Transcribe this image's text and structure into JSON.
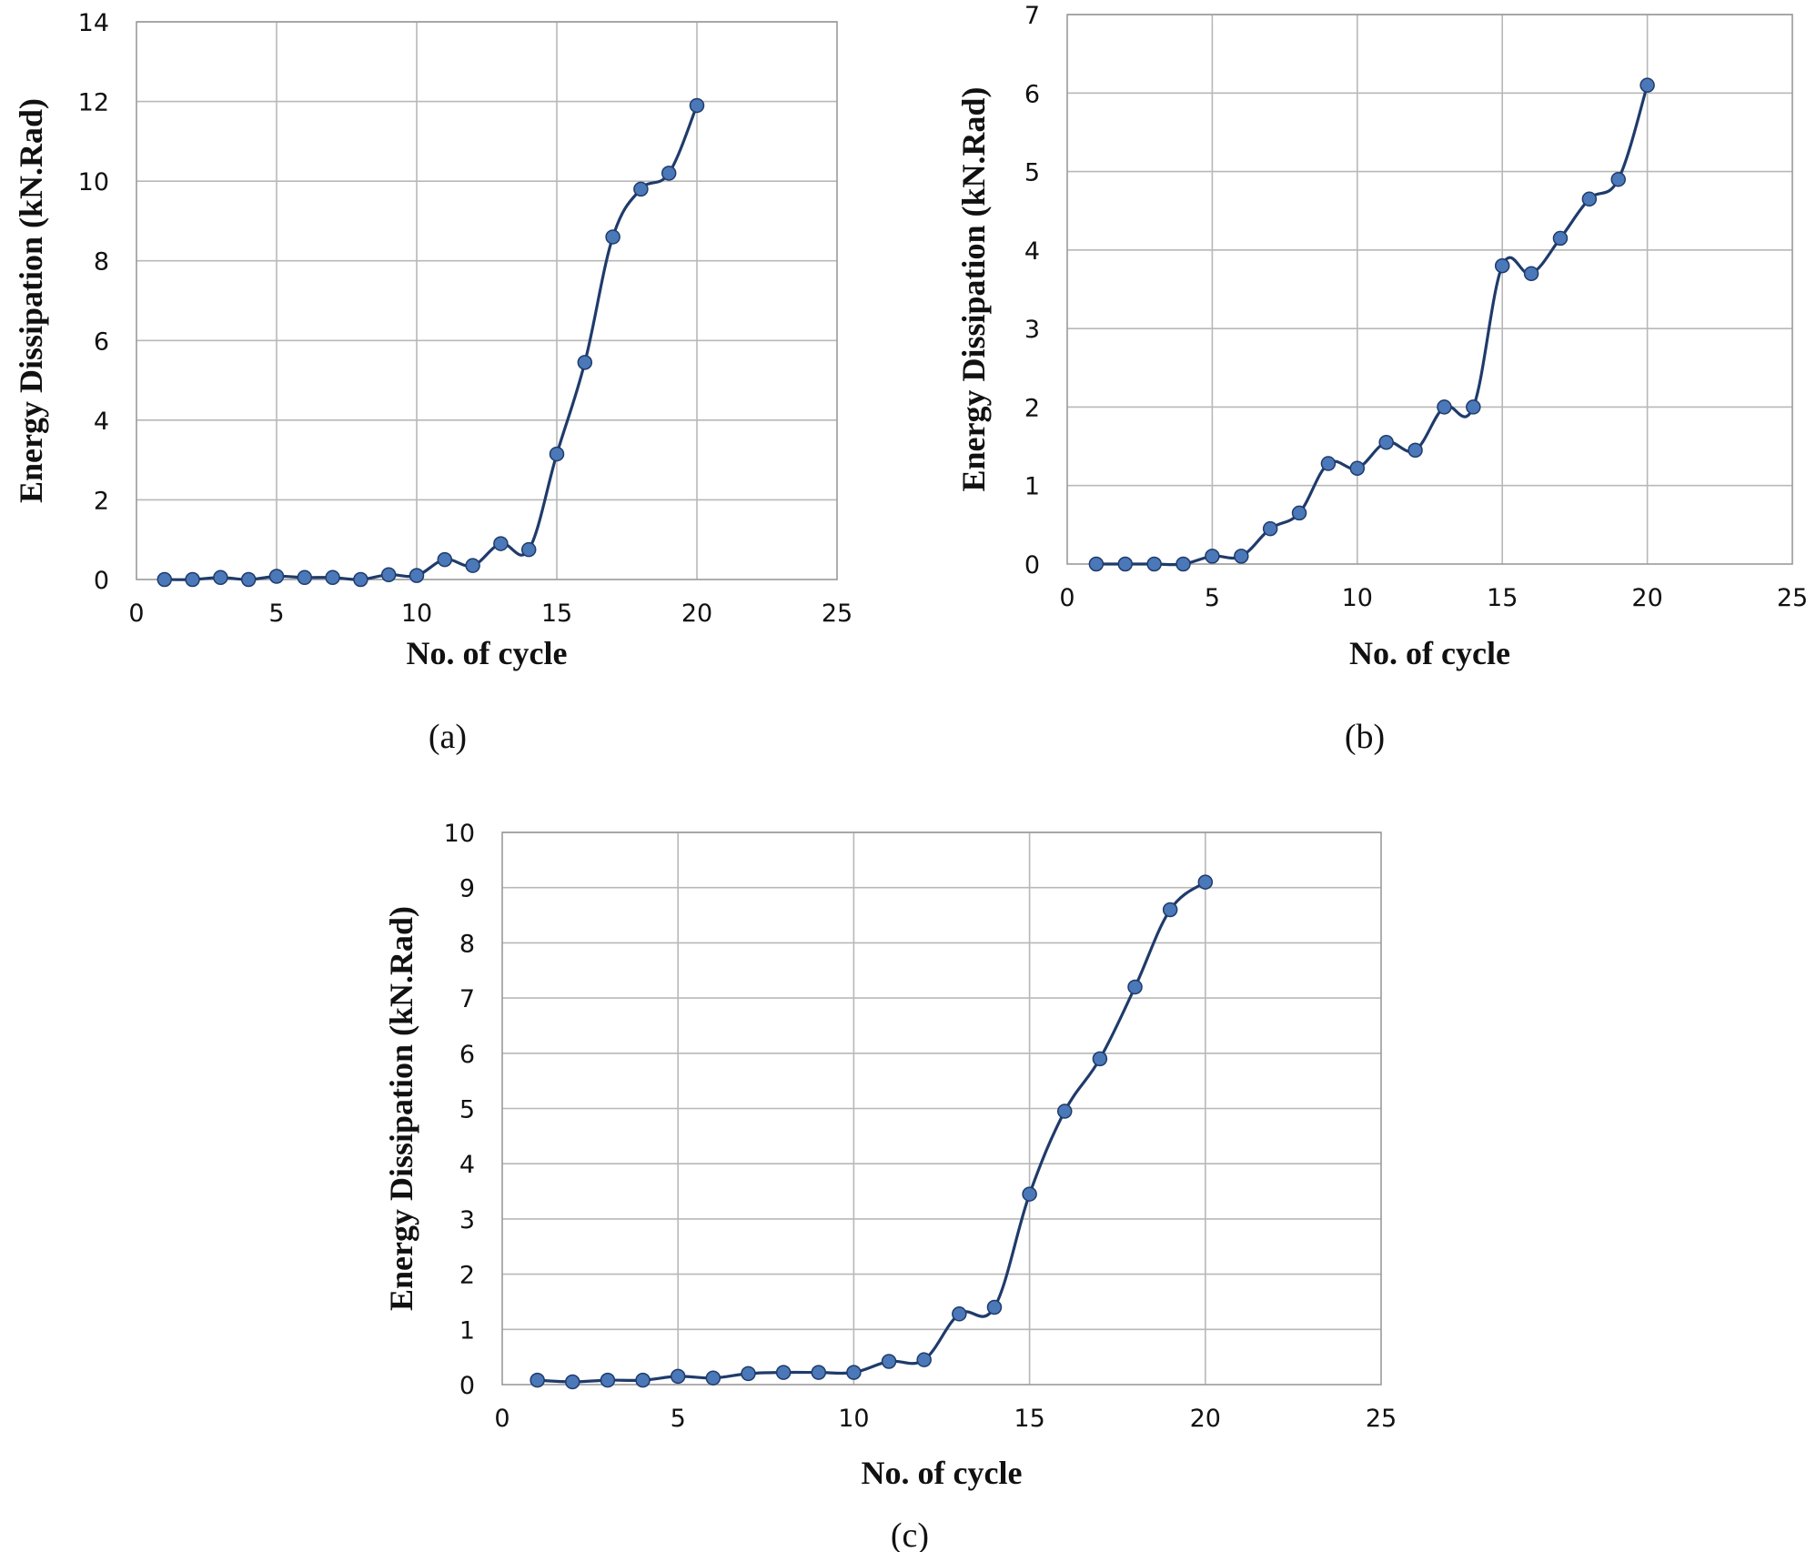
{
  "colors": {
    "series_line": "#1f3b6b",
    "marker_fill": "#4a78b8",
    "marker_stroke": "#1f3b6b"
  },
  "chart_data": [
    {
      "type": "line",
      "panel": "a",
      "caption": "(a)",
      "xlabel": "No. of cycle",
      "ylabel": "Energy Dissipation (kN.Rad)",
      "xlim": [
        0,
        25
      ],
      "ylim": [
        0,
        14
      ],
      "x_ticks": [
        0,
        5,
        10,
        15,
        20,
        25
      ],
      "y_ticks": [
        0,
        2,
        4,
        6,
        8,
        10,
        12,
        14
      ],
      "grid": true,
      "smooth": true,
      "series": [
        {
          "x": [
            1,
            2,
            3,
            4,
            5,
            6,
            7,
            8,
            9,
            10,
            11,
            12,
            13,
            14,
            15,
            16,
            17,
            18,
            19,
            20
          ],
          "values": [
            0.0,
            0.0,
            0.05,
            0.0,
            0.08,
            0.05,
            0.05,
            0.0,
            0.12,
            0.1,
            0.5,
            0.35,
            0.9,
            0.75,
            3.15,
            5.45,
            8.6,
            9.8,
            10.2,
            11.9
          ]
        }
      ]
    },
    {
      "type": "line",
      "panel": "b",
      "caption": "(b)",
      "xlabel": "No. of cycle",
      "ylabel": "Energy Dissipation (kN.Rad)",
      "xlim": [
        0,
        25
      ],
      "ylim": [
        0,
        7
      ],
      "x_ticks": [
        0,
        5,
        10,
        15,
        20,
        25
      ],
      "y_ticks": [
        0,
        1,
        2,
        3,
        4,
        5,
        6,
        7
      ],
      "grid": true,
      "smooth": true,
      "series": [
        {
          "x": [
            1,
            2,
            3,
            4,
            5,
            6,
            7,
            8,
            9,
            10,
            11,
            12,
            13,
            14,
            15,
            16,
            17,
            18,
            19,
            20
          ],
          "values": [
            0.0,
            0.0,
            0.0,
            0.0,
            0.1,
            0.1,
            0.45,
            0.65,
            1.28,
            1.22,
            1.55,
            1.45,
            2.0,
            2.0,
            3.8,
            3.7,
            4.15,
            4.65,
            4.9,
            6.1
          ]
        }
      ]
    },
    {
      "type": "line",
      "panel": "c",
      "caption": "(c)",
      "xlabel": "No. of cycle",
      "ylabel": "Energy Dissipation (kN.Rad)",
      "xlim": [
        0,
        25
      ],
      "ylim": [
        0,
        10
      ],
      "x_ticks": [
        0,
        5,
        10,
        15,
        20,
        25
      ],
      "y_ticks": [
        0,
        1,
        2,
        3,
        4,
        5,
        6,
        7,
        8,
        9,
        10
      ],
      "grid": true,
      "smooth": true,
      "series": [
        {
          "x": [
            1,
            2,
            3,
            4,
            5,
            6,
            7,
            8,
            9,
            10,
            11,
            12,
            13,
            14,
            15,
            16,
            17,
            18,
            19,
            20
          ],
          "values": [
            0.08,
            0.05,
            0.08,
            0.08,
            0.15,
            0.12,
            0.2,
            0.22,
            0.22,
            0.22,
            0.42,
            0.45,
            1.28,
            1.4,
            3.45,
            4.95,
            5.9,
            7.2,
            8.6,
            9.1
          ]
        }
      ]
    }
  ]
}
